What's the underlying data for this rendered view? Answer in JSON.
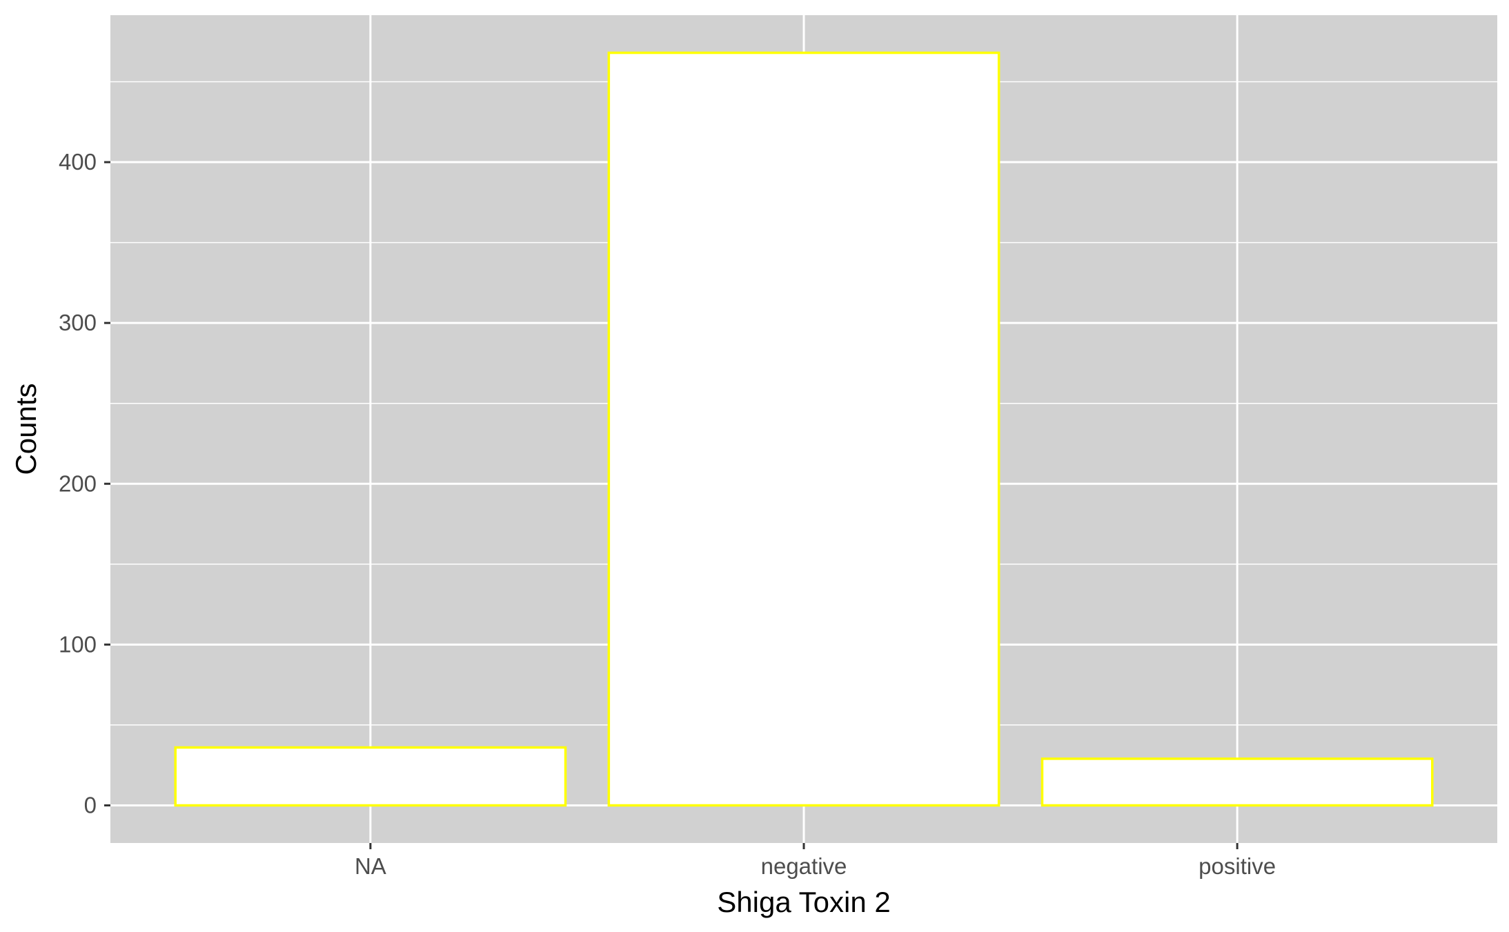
{
  "chart_data": {
    "type": "bar",
    "categories": [
      "NA",
      "negative",
      "positive"
    ],
    "values": [
      36,
      468,
      29
    ],
    "xlabel": "Shiga Toxin 2",
    "ylabel": "Counts",
    "ylim": [
      -23.4,
      491.4
    ],
    "yticks": [
      0,
      100,
      200,
      300,
      400
    ],
    "ytick_labels": [
      "0",
      "100",
      "200",
      "300",
      "400"
    ],
    "grid": true,
    "colors": {
      "panel_background": "#d1d1d1",
      "grid": "#ffffff",
      "bar_fill": "#ffffff",
      "bar_outline": "#ffff00",
      "tick_text": "#4d4d4d",
      "axis_title": "#000000"
    }
  }
}
